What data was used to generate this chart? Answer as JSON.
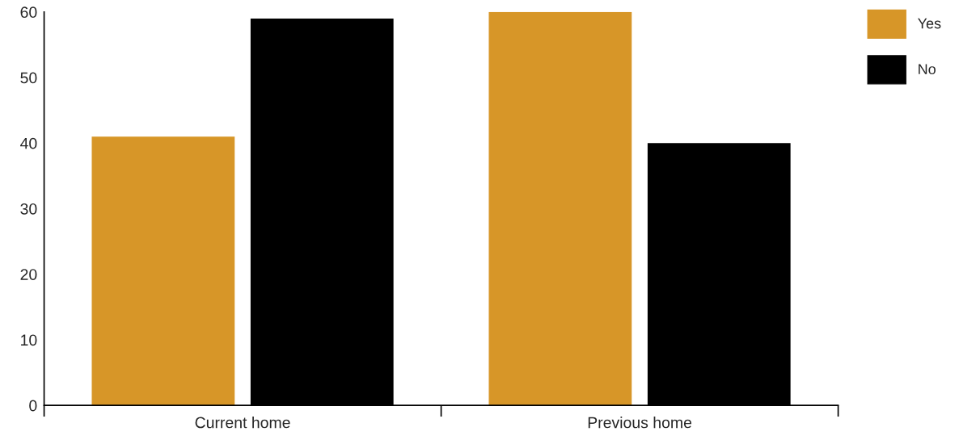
{
  "chart_data": {
    "type": "bar",
    "categories": [
      "Current home",
      "Previous home"
    ],
    "series": [
      {
        "name": "Yes",
        "color": "#d79628",
        "values": [
          41,
          60
        ]
      },
      {
        "name": "No",
        "color": "#000000",
        "values": [
          59,
          40
        ]
      }
    ],
    "ylim": [
      0,
      60
    ],
    "yticks": [
      0,
      10,
      20,
      30,
      40,
      50,
      60
    ],
    "grid": false,
    "legend": "top right"
  }
}
